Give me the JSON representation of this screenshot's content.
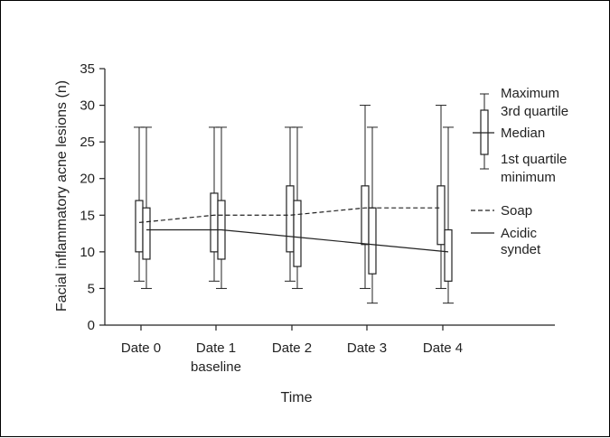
{
  "chart_data": {
    "type": "boxplot",
    "xlabel": "Time",
    "ylabel": "Facial inflammatory acne lesions (n)",
    "ylim": [
      0,
      35
    ],
    "yticks": [
      "0",
      "5",
      "10",
      "15",
      "20",
      "25",
      "30",
      "35"
    ],
    "categories": [
      {
        "line1": "Date 0",
        "line2": ""
      },
      {
        "line1": "Date 1",
        "line2": "baseline"
      },
      {
        "line1": "Date 2",
        "line2": ""
      },
      {
        "line1": "Date 3",
        "line2": ""
      },
      {
        "line1": "Date 4",
        "line2": ""
      }
    ],
    "series": [
      {
        "key": "soap",
        "line_style": "dashed",
        "boxes": [
          {
            "min": 6,
            "q1": 10,
            "median": 14,
            "q3": 17,
            "max": 27
          },
          {
            "min": 6,
            "q1": 10,
            "median": 15,
            "q3": 18,
            "max": 27
          },
          {
            "min": 6,
            "q1": 10,
            "median": 15,
            "q3": 19,
            "max": 27
          },
          {
            "min": 5,
            "q1": 11,
            "median": 16,
            "q3": 19,
            "max": 30
          },
          {
            "min": 5,
            "q1": 11,
            "median": 16,
            "q3": 19,
            "max": 30
          }
        ]
      },
      {
        "key": "syndet",
        "line_style": "solid",
        "boxes": [
          {
            "min": 5,
            "q1": 9,
            "median": 13,
            "q3": 16,
            "max": 27
          },
          {
            "min": 5,
            "q1": 9,
            "median": 13,
            "q3": 17,
            "max": 27
          },
          {
            "min": 5,
            "q1": 8,
            "median": 12,
            "q3": 17,
            "max": 27
          },
          {
            "min": 3,
            "q1": 7,
            "median": 11,
            "q3": 16,
            "max": 27
          },
          {
            "min": 3,
            "q1": 6,
            "median": 10,
            "q3": 13,
            "max": 27
          }
        ]
      }
    ],
    "legend": {
      "placement": "right",
      "box_key": {
        "maximum": "Maximum",
        "q3": "3rd quartile",
        "median": "Median",
        "q1": "1st quartile",
        "minimum": "minimum"
      },
      "soap": "Soap",
      "syndet_line1": "Acidic",
      "syndet_line2": "syndet"
    }
  }
}
